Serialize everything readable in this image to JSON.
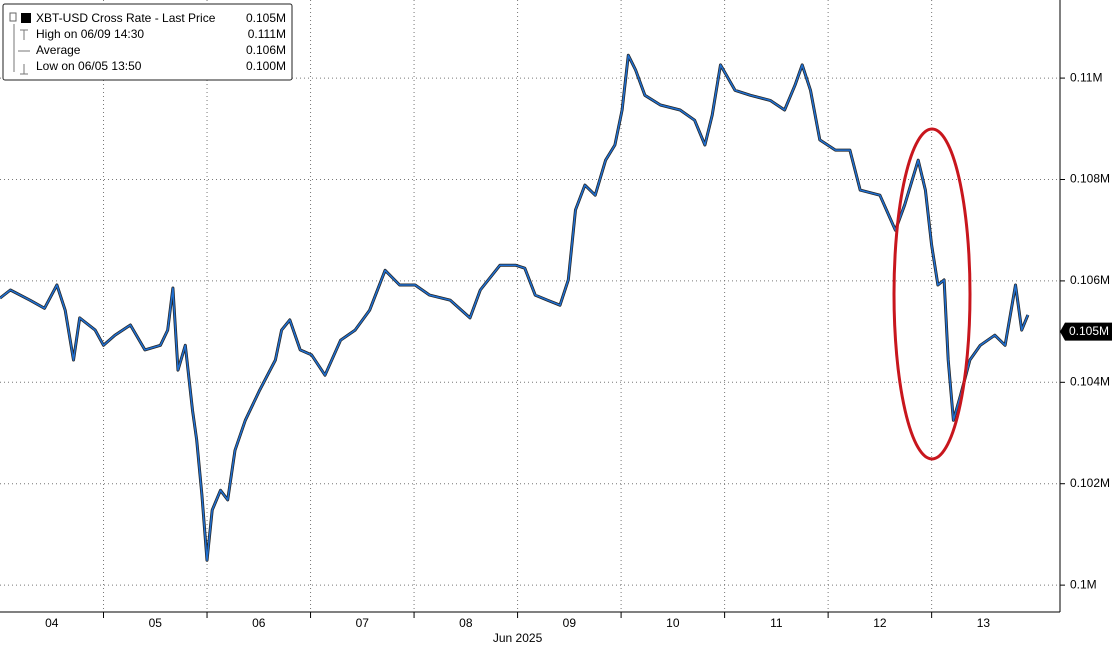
{
  "chart_data": {
    "type": "line",
    "series": [
      {
        "name": "XBT-USD Cross Rate - Last Price",
        "color": "#1f6fd1",
        "last": {
          "value": 0.105,
          "label": "0.105M"
        },
        "x": [
          4.0,
          4.1,
          4.29,
          4.43,
          4.55,
          4.63,
          4.71,
          4.77,
          4.92,
          5.0,
          5.11,
          5.26,
          5.4,
          5.55,
          5.62,
          5.67,
          5.72,
          5.79,
          5.86,
          5.9,
          5.95,
          6.0,
          6.05,
          6.13,
          6.2,
          6.27,
          6.37,
          6.51,
          6.66,
          6.72,
          6.8,
          6.9,
          7.01,
          7.14,
          7.29,
          7.43,
          7.57,
          7.72,
          7.86,
          8.01,
          8.15,
          8.35,
          8.54,
          8.64,
          8.83,
          8.98,
          9.07,
          9.17,
          9.29,
          9.41,
          9.49,
          9.56,
          9.65,
          9.75,
          9.85,
          9.94,
          10.01,
          10.07,
          10.14,
          10.23,
          10.38,
          10.57,
          10.71,
          10.81,
          10.88,
          10.96,
          11.1,
          11.25,
          11.44,
          11.58,
          11.68,
          11.75,
          11.83,
          11.92,
          12.07,
          12.21,
          12.31,
          12.5,
          12.65,
          12.74,
          12.87,
          12.94,
          13.0,
          13.06,
          13.12,
          13.16,
          13.21,
          13.28,
          13.37,
          13.47,
          13.61,
          13.71,
          13.81,
          13.87,
          13.93
        ],
        "values": [
          0.10566,
          0.10582,
          0.10562,
          0.10546,
          0.10592,
          0.10542,
          0.10444,
          0.10527,
          0.10503,
          0.10473,
          0.10493,
          0.10513,
          0.10464,
          0.10473,
          0.10503,
          0.10586,
          0.10424,
          0.10473,
          0.10345,
          0.10286,
          0.10178,
          0.10049,
          0.10148,
          0.10187,
          0.10168,
          0.10266,
          0.10325,
          0.10385,
          0.10444,
          0.10503,
          0.10523,
          0.10464,
          0.10454,
          0.10414,
          0.10483,
          0.10503,
          0.10542,
          0.10621,
          0.10592,
          0.10592,
          0.10572,
          0.10562,
          0.10527,
          0.10582,
          0.10631,
          0.10631,
          0.10625,
          0.10572,
          0.10562,
          0.10552,
          0.10602,
          0.1074,
          0.10789,
          0.10769,
          0.10838,
          0.10868,
          0.10937,
          0.11045,
          0.11016,
          0.10966,
          0.10947,
          0.10937,
          0.10917,
          0.10868,
          0.10927,
          0.11026,
          0.10976,
          0.10966,
          0.10956,
          0.10937,
          0.10986,
          0.11026,
          0.10976,
          0.10878,
          0.10858,
          0.10858,
          0.10779,
          0.10769,
          0.107,
          0.1075,
          0.10838,
          0.10779,
          0.10671,
          0.10592,
          0.10602,
          0.10444,
          0.10325,
          0.10375,
          0.10444,
          0.10473,
          0.10493,
          0.10473,
          0.10592,
          0.10503,
          0.10533
        ]
      }
    ],
    "stats": [
      {
        "label": "High on 06/09 14:30",
        "value": 0.111,
        "value_label": "0.111M"
      },
      {
        "label": "Average",
        "value": 0.106,
        "value_label": "0.106M"
      },
      {
        "label": "Low on 06/05 13:50",
        "value": 0.1,
        "value_label": "0.100M"
      }
    ],
    "x_label": "Jun 2025",
    "xlim": [
      4,
      14.24
    ],
    "xticks": [
      {
        "value": 4.5,
        "label": "04"
      },
      {
        "value": 5.5,
        "label": "05"
      },
      {
        "value": 6.5,
        "label": "06"
      },
      {
        "value": 7.5,
        "label": "07"
      },
      {
        "value": 8.5,
        "label": "08"
      },
      {
        "value": 9.5,
        "label": "09"
      },
      {
        "value": 10.5,
        "label": "10"
      },
      {
        "value": 11.5,
        "label": "11"
      },
      {
        "value": 12.5,
        "label": "12"
      },
      {
        "value": 13.5,
        "label": "13"
      }
    ],
    "xgrid": [
      5,
      6,
      7,
      8,
      9,
      10,
      11,
      12,
      13
    ],
    "ylim": [
      0.09947,
      0.11154
    ],
    "yticks": [
      {
        "value": 0.1,
        "label": "0.1M"
      },
      {
        "value": 0.102,
        "label": "0.102M"
      },
      {
        "value": 0.104,
        "label": "0.104M"
      },
      {
        "value": 0.106,
        "label": "0.106M"
      },
      {
        "value": 0.108,
        "label": "0.108M"
      },
      {
        "value": 0.11,
        "label": "0.11M"
      }
    ],
    "grid": true
  }
}
